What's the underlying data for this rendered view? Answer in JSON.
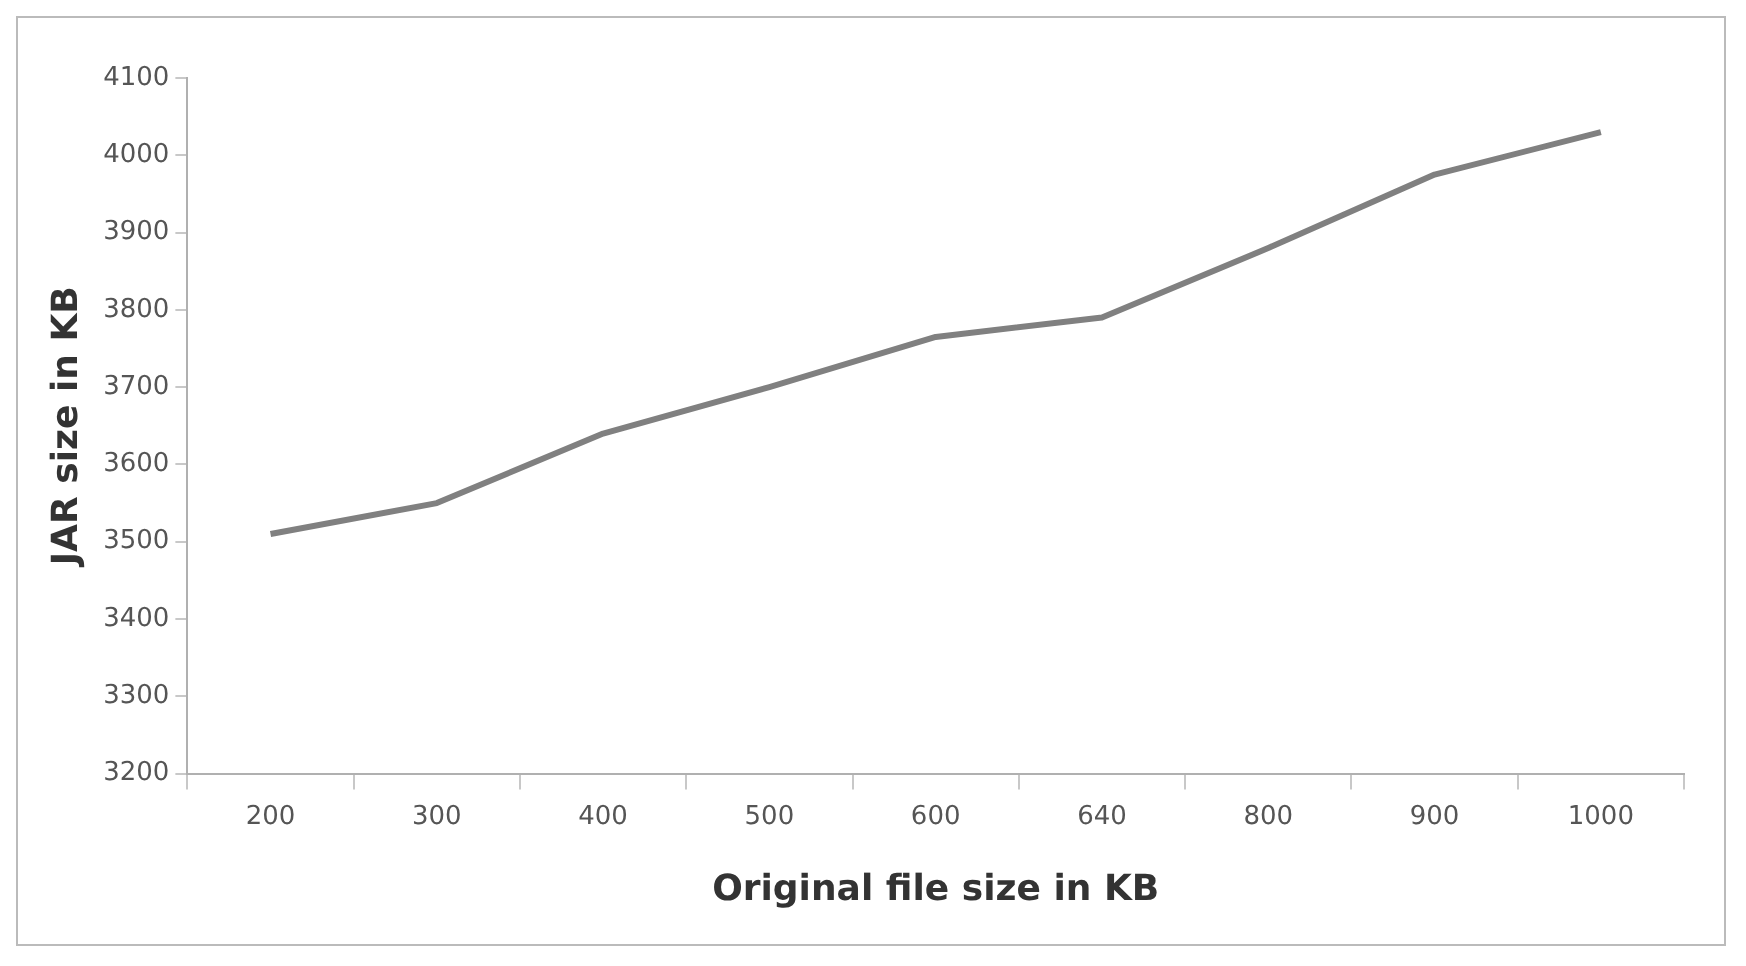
{
  "chart_data": {
    "type": "line",
    "xlabel": "Original file size in KB",
    "ylabel": "JAR size in KB",
    "categories": [
      "200",
      "300",
      "400",
      "500",
      "600",
      "640",
      "800",
      "900",
      "1000"
    ],
    "series": [
      {
        "color": "#808080",
        "values": [
          3510,
          3550,
          3640,
          3700,
          3765,
          3790,
          3880,
          3975,
          4030
        ]
      }
    ],
    "ylim": [
      3200,
      4100
    ],
    "yticks": [
      3200,
      3300,
      3400,
      3500,
      3600,
      3700,
      3800,
      3900,
      4000,
      4100
    ],
    "grid": false,
    "legend": false,
    "marker": "none",
    "line_style": "solid"
  }
}
